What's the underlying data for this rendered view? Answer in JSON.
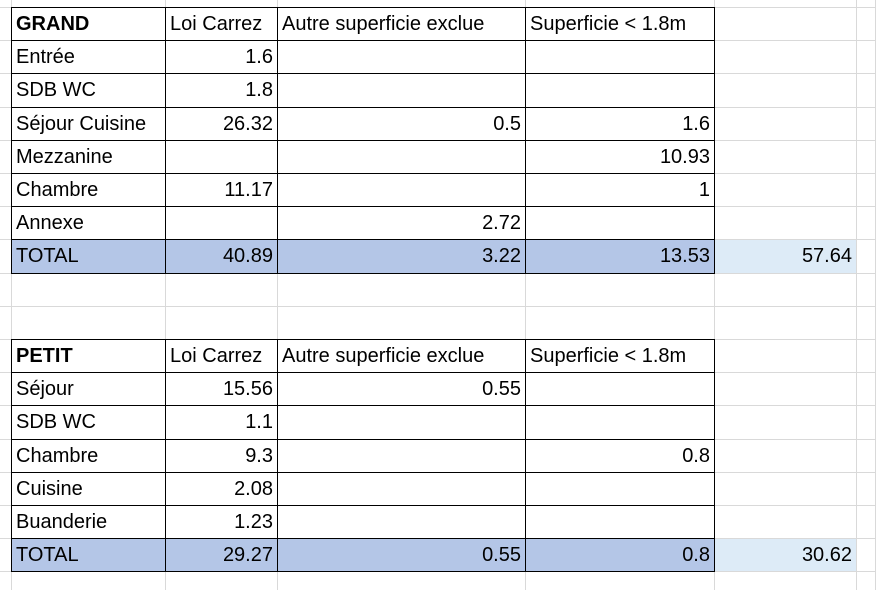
{
  "tables": [
    {
      "title": "GRAND",
      "headers": [
        "Loi Carrez",
        "Autre superficie exclue",
        "Superficie < 1.8m"
      ],
      "rows": [
        {
          "label": "Entrée",
          "values": [
            1.6,
            null,
            null
          ]
        },
        {
          "label": "SDB WC",
          "values": [
            1.8,
            null,
            null
          ]
        },
        {
          "label": "Séjour Cuisine",
          "values": [
            26.32,
            0.5,
            1.6
          ]
        },
        {
          "label": "Mezzanine",
          "values": [
            null,
            null,
            10.93
          ]
        },
        {
          "label": "Chambre",
          "values": [
            11.17,
            null,
            1
          ]
        },
        {
          "label": "Annexe",
          "values": [
            null,
            2.72,
            null
          ]
        }
      ],
      "total": {
        "label": "TOTAL",
        "values": [
          40.89,
          3.22,
          13.53
        ],
        "grand_total": 57.64
      }
    },
    {
      "title": "PETIT",
      "headers": [
        "Loi Carrez",
        "Autre superficie exclue",
        "Superficie < 1.8m"
      ],
      "rows": [
        {
          "label": "Séjour",
          "values": [
            15.56,
            0.55,
            null
          ]
        },
        {
          "label": "SDB WC",
          "values": [
            1.1,
            null,
            null
          ]
        },
        {
          "label": "Chambre",
          "values": [
            9.3,
            null,
            0.8
          ]
        },
        {
          "label": "Cuisine",
          "values": [
            2.08,
            null,
            null
          ]
        },
        {
          "label": "Buanderie",
          "values": [
            1.23,
            null,
            null
          ]
        }
      ],
      "total": {
        "label": "TOTAL",
        "values": [
          29.27,
          0.55,
          0.8
        ],
        "grand_total": 30.62
      }
    }
  ]
}
